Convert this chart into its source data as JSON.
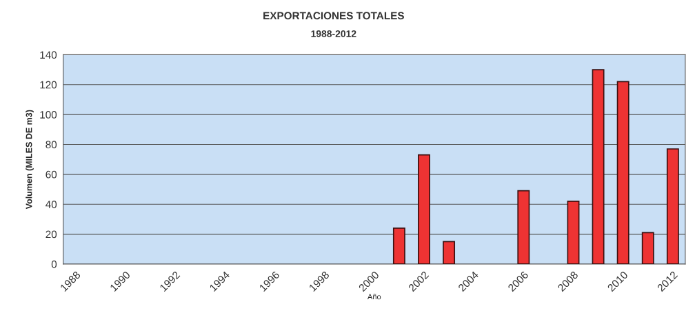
{
  "chart_data": {
    "type": "bar",
    "title": "EXPORTACIONES TOTALES",
    "subtitle": "1988-2012",
    "xlabel": "Año",
    "ylabel": "Volumen (MILES DE m3)",
    "categories": [
      "1988",
      null,
      "1990",
      null,
      "1992",
      null,
      "1994",
      null,
      "1996",
      null,
      "1998",
      null,
      "2000",
      null,
      "2002",
      null,
      "2004",
      null,
      "2006",
      null,
      "2008",
      null,
      "2010",
      null,
      "2012"
    ],
    "values": [
      null,
      null,
      null,
      null,
      null,
      null,
      null,
      null,
      null,
      null,
      null,
      null,
      null,
      24,
      73,
      15,
      null,
      null,
      49,
      null,
      42,
      130,
      122,
      21,
      77
    ],
    "color": "#ee3333",
    "ylim": [
      0,
      140
    ],
    "yticks": [
      0,
      20,
      40,
      60,
      80,
      100,
      120,
      140
    ],
    "grid": "y",
    "legend": false
  }
}
